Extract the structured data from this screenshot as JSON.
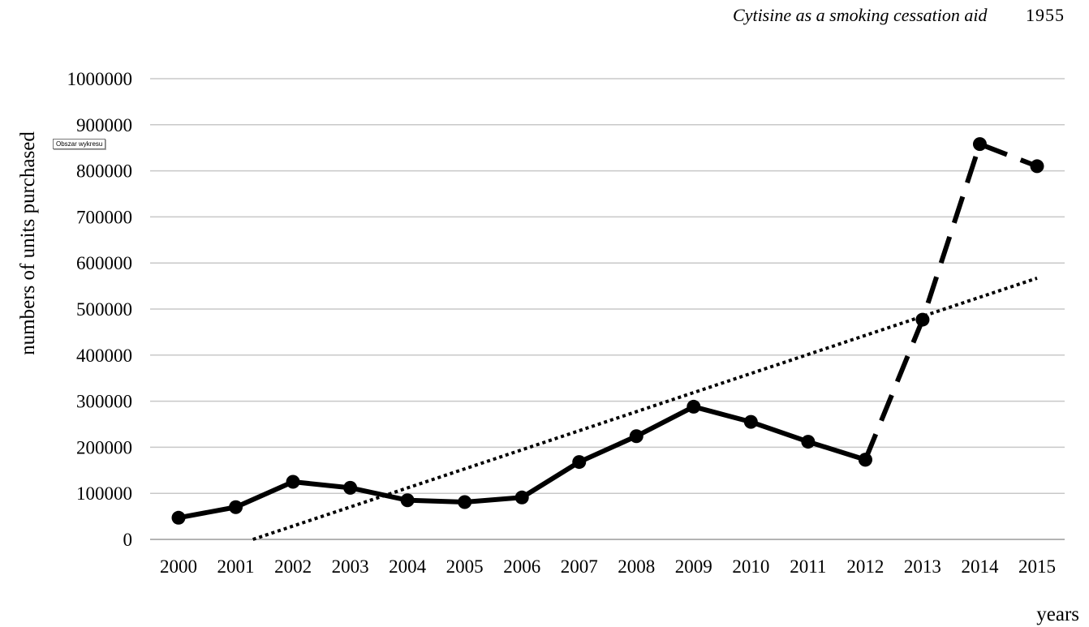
{
  "header": {
    "title": "Cytisine as a smoking cessation aid",
    "page_number": "1955"
  },
  "tooltip": "Obszar wykresu",
  "chart_data": {
    "type": "line",
    "title": "",
    "xlabel": "years",
    "ylabel": "numbers of units purchased",
    "ylim": [
      0,
      1000000
    ],
    "yticks": [
      "0",
      "100000",
      "200000",
      "300000",
      "400000",
      "500000",
      "600000",
      "700000",
      "800000",
      "900000",
      "1000000"
    ],
    "categories": [
      "2000",
      "2001",
      "2002",
      "2003",
      "2004",
      "2005",
      "2006",
      "2007",
      "2008",
      "2009",
      "2010",
      "2011",
      "2012",
      "2013",
      "2014",
      "2015"
    ],
    "grid": "horizontal",
    "series": [
      {
        "style": "solid",
        "x": [
          "2000",
          "2001",
          "2002",
          "2003",
          "2004",
          "2005",
          "2006",
          "2007",
          "2008",
          "2009",
          "2010",
          "2011",
          "2012"
        ],
        "values": [
          47000,
          70000,
          125000,
          112000,
          85000,
          81000,
          91000,
          168000,
          224000,
          288000,
          255000,
          212000,
          173000
        ]
      },
      {
        "style": "dashed",
        "x": [
          "2012",
          "2013",
          "2014",
          "2015"
        ],
        "values": [
          173000,
          477000,
          858000,
          810000
        ]
      },
      {
        "style": "dotted-trend",
        "x_start": 2001.3,
        "x_end": 2015,
        "y_start": 0,
        "y_end": 567000
      }
    ]
  }
}
